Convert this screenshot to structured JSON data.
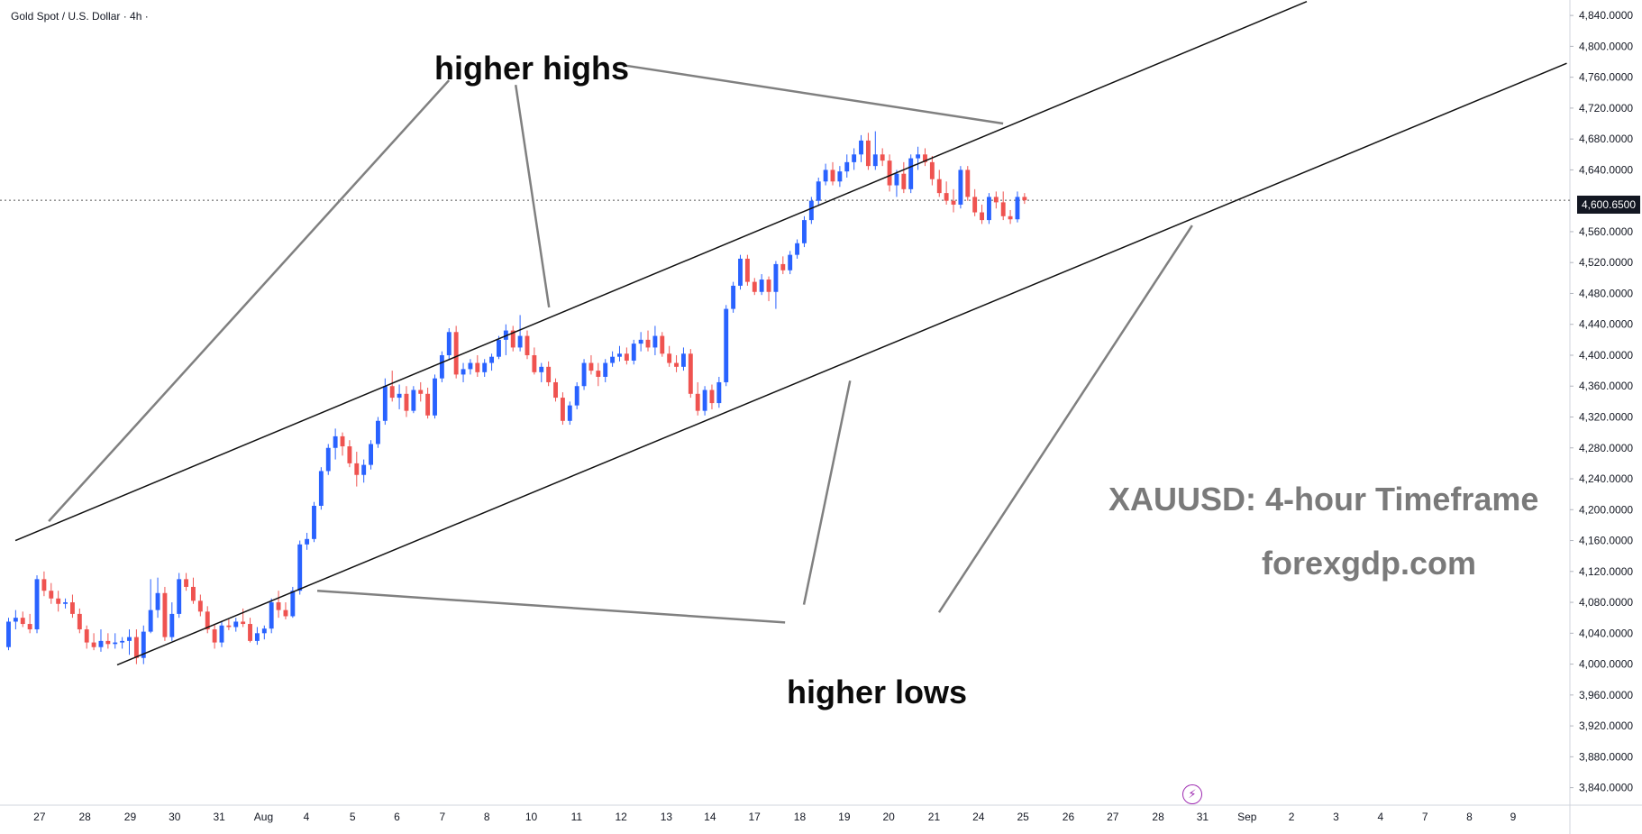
{
  "header": {
    "symbol": "Gold Spot / U.S. Dollar · 4h ·"
  },
  "current_price": "4,600.6500",
  "annotations": {
    "higher_highs": "higher highs",
    "higher_lows": "higher lows",
    "watermark_title": "XAUUSD: 4-hour Timeframe",
    "watermark_site": "forexgdp.com"
  },
  "colors": {
    "up": "#2962ff",
    "down": "#ef5350",
    "channel": "#111111",
    "pointer": "#808080",
    "watermark": "#7a7a7a"
  },
  "chart_data": {
    "type": "candlestick",
    "title": "",
    "price_range": [
      3825,
      4860
    ],
    "price_ticks": [
      "4,840.0000",
      "4,800.0000",
      "4,760.0000",
      "4,720.0000",
      "4,680.0000",
      "4,640.0000",
      "4,560.0000",
      "4,520.0000",
      "4,480.0000",
      "4,440.0000",
      "4,400.0000",
      "4,360.0000",
      "4,320.0000",
      "4,280.0000",
      "4,240.0000",
      "4,200.0000",
      "4,160.0000",
      "4,120.0000",
      "4,080.0000",
      "4,040.0000",
      "4,000.0000",
      "3,960.0000",
      "3,920.0000",
      "3,880.0000",
      "3,840.0000"
    ],
    "time_ticks": [
      "27",
      "28",
      "29",
      "30",
      "31",
      "Aug",
      "4",
      "5",
      "6",
      "7",
      "8",
      "10",
      "11",
      "12",
      "13",
      "14",
      "17",
      "18",
      "19",
      "20",
      "21",
      "24",
      "25",
      "26",
      "27",
      "28",
      "31",
      "Sep",
      "2",
      "3",
      "4",
      "7",
      "8",
      "9"
    ],
    "last_price": 4600.65,
    "candles_ohlc": [
      [
        4022,
        4060,
        4018,
        4055
      ],
      [
        4055,
        4070,
        4045,
        4060
      ],
      [
        4060,
        4068,
        4048,
        4052
      ],
      [
        4052,
        4065,
        4040,
        4045
      ],
      [
        4045,
        4115,
        4040,
        4110
      ],
      [
        4110,
        4120,
        4088,
        4095
      ],
      [
        4095,
        4105,
        4078,
        4085
      ],
      [
        4085,
        4095,
        4068,
        4078
      ],
      [
        4078,
        4085,
        4072,
        4080
      ],
      [
        4080,
        4090,
        4060,
        4065
      ],
      [
        4065,
        4072,
        4040,
        4045
      ],
      [
        4045,
        4050,
        4020,
        4028
      ],
      [
        4028,
        4040,
        4018,
        4022
      ],
      [
        4022,
        4045,
        4016,
        4030
      ],
      [
        4030,
        4040,
        4020,
        4026
      ],
      [
        4026,
        4040,
        4020,
        4028
      ],
      [
        4028,
        4035,
        4020,
        4030
      ],
      [
        4030,
        4045,
        4012,
        4035
      ],
      [
        4035,
        4045,
        4000,
        4008
      ],
      [
        4008,
        4050,
        4000,
        4042
      ],
      [
        4042,
        4110,
        4040,
        4070
      ],
      [
        4070,
        4112,
        4060,
        4092
      ],
      [
        4092,
        4100,
        4030,
        4035
      ],
      [
        4035,
        4080,
        4030,
        4065
      ],
      [
        4065,
        4118,
        4060,
        4110
      ],
      [
        4110,
        4118,
        4095,
        4100
      ],
      [
        4100,
        4112,
        4078,
        4082
      ],
      [
        4082,
        4090,
        4062,
        4068
      ],
      [
        4068,
        4075,
        4040,
        4045
      ],
      [
        4045,
        4052,
        4020,
        4028
      ],
      [
        4028,
        4055,
        4022,
        4050
      ],
      [
        4050,
        4058,
        4044,
        4048
      ],
      [
        4048,
        4060,
        4042,
        4055
      ],
      [
        4055,
        4072,
        4048,
        4052
      ],
      [
        4052,
        4060,
        4028,
        4030
      ],
      [
        4030,
        4048,
        4025,
        4040
      ],
      [
        4040,
        4050,
        4032,
        4046
      ],
      [
        4046,
        4085,
        4040,
        4080
      ],
      [
        4080,
        4095,
        4060,
        4070
      ],
      [
        4070,
        4080,
        4058,
        4062
      ],
      [
        4062,
        4100,
        4060,
        4095
      ],
      [
        4095,
        4160,
        4090,
        4155
      ],
      [
        4155,
        4170,
        4148,
        4162
      ],
      [
        4162,
        4210,
        4158,
        4205
      ],
      [
        4205,
        4255,
        4200,
        4250
      ],
      [
        4250,
        4285,
        4245,
        4280
      ],
      [
        4280,
        4305,
        4265,
        4295
      ],
      [
        4295,
        4300,
        4270,
        4282
      ],
      [
        4282,
        4290,
        4255,
        4260
      ],
      [
        4260,
        4275,
        4230,
        4245
      ],
      [
        4245,
        4265,
        4235,
        4258
      ],
      [
        4258,
        4290,
        4252,
        4285
      ],
      [
        4285,
        4320,
        4280,
        4315
      ],
      [
        4315,
        4370,
        4310,
        4360
      ],
      [
        4360,
        4380,
        4340,
        4345
      ],
      [
        4345,
        4362,
        4330,
        4350
      ],
      [
        4350,
        4360,
        4320,
        4328
      ],
      [
        4328,
        4360,
        4325,
        4355
      ],
      [
        4355,
        4365,
        4340,
        4350
      ],
      [
        4350,
        4358,
        4318,
        4322
      ],
      [
        4322,
        4375,
        4318,
        4370
      ],
      [
        4370,
        4405,
        4365,
        4400
      ],
      [
        4400,
        4435,
        4395,
        4430
      ],
      [
        4430,
        4438,
        4370,
        4375
      ],
      [
        4375,
        4390,
        4365,
        4382
      ],
      [
        4382,
        4395,
        4375,
        4390
      ],
      [
        4390,
        4400,
        4372,
        4378
      ],
      [
        4378,
        4395,
        4372,
        4390
      ],
      [
        4390,
        4402,
        4380,
        4398
      ],
      [
        4398,
        4425,
        4395,
        4420
      ],
      [
        4420,
        4440,
        4400,
        4432
      ],
      [
        4432,
        4438,
        4405,
        4410
      ],
      [
        4410,
        4452,
        4405,
        4425
      ],
      [
        4425,
        4432,
        4395,
        4400
      ],
      [
        4400,
        4410,
        4375,
        4378
      ],
      [
        4378,
        4390,
        4365,
        4385
      ],
      [
        4385,
        4392,
        4360,
        4365
      ],
      [
        4365,
        4370,
        4340,
        4345
      ],
      [
        4345,
        4352,
        4310,
        4315
      ],
      [
        4315,
        4340,
        4310,
        4335
      ],
      [
        4335,
        4365,
        4330,
        4360
      ],
      [
        4360,
        4395,
        4355,
        4390
      ],
      [
        4390,
        4400,
        4375,
        4380
      ],
      [
        4380,
        4390,
        4360,
        4372
      ],
      [
        4372,
        4395,
        4365,
        4390
      ],
      [
        4390,
        4405,
        4385,
        4398
      ],
      [
        4398,
        4412,
        4392,
        4402
      ],
      [
        4402,
        4410,
        4388,
        4393
      ],
      [
        4393,
        4420,
        4388,
        4415
      ],
      [
        4415,
        4430,
        4405,
        4420
      ],
      [
        4420,
        4432,
        4405,
        4410
      ],
      [
        4410,
        4438,
        4400,
        4425
      ],
      [
        4425,
        4430,
        4398,
        4402
      ],
      [
        4402,
        4412,
        4385,
        4390
      ],
      [
        4390,
        4400,
        4378,
        4385
      ],
      [
        4385,
        4410,
        4380,
        4402
      ],
      [
        4402,
        4408,
        4345,
        4350
      ],
      [
        4350,
        4365,
        4322,
        4328
      ],
      [
        4328,
        4360,
        4322,
        4355
      ],
      [
        4355,
        4362,
        4330,
        4338
      ],
      [
        4338,
        4372,
        4332,
        4365
      ],
      [
        4365,
        4465,
        4360,
        4460
      ],
      [
        4460,
        4495,
        4455,
        4490
      ],
      [
        4490,
        4530,
        4485,
        4525
      ],
      [
        4525,
        4530,
        4490,
        4495
      ],
      [
        4495,
        4500,
        4478,
        4482
      ],
      [
        4482,
        4505,
        4478,
        4498
      ],
      [
        4498,
        4502,
        4470,
        4482
      ],
      [
        4482,
        4522,
        4460,
        4518
      ],
      [
        4518,
        4528,
        4505,
        4510
      ],
      [
        4510,
        4535,
        4505,
        4530
      ],
      [
        4530,
        4550,
        4525,
        4545
      ],
      [
        4545,
        4580,
        4540,
        4575
      ],
      [
        4575,
        4605,
        4570,
        4600
      ],
      [
        4600,
        4630,
        4595,
        4625
      ],
      [
        4625,
        4648,
        4620,
        4640
      ],
      [
        4640,
        4650,
        4620,
        4625
      ],
      [
        4625,
        4645,
        4618,
        4638
      ],
      [
        4638,
        4660,
        4630,
        4650
      ],
      [
        4650,
        4668,
        4640,
        4660
      ],
      [
        4660,
        4685,
        4650,
        4678
      ],
      [
        4678,
        4688,
        4640,
        4645
      ],
      [
        4645,
        4690,
        4640,
        4660
      ],
      [
        4660,
        4668,
        4645,
        4652
      ],
      [
        4652,
        4660,
        4612,
        4620
      ],
      [
        4620,
        4640,
        4605,
        4635
      ],
      [
        4635,
        4650,
        4610,
        4615
      ],
      [
        4615,
        4660,
        4610,
        4655
      ],
      [
        4655,
        4670,
        4640,
        4660
      ],
      [
        4660,
        4668,
        4645,
        4650
      ],
      [
        4650,
        4658,
        4620,
        4628
      ],
      [
        4628,
        4640,
        4605,
        4610
      ],
      [
        4610,
        4625,
        4595,
        4600
      ],
      [
        4600,
        4615,
        4585,
        4595
      ],
      [
        4595,
        4645,
        4590,
        4640
      ],
      [
        4640,
        4645,
        4600,
        4605
      ],
      [
        4605,
        4615,
        4580,
        4585
      ],
      [
        4585,
        4595,
        4570,
        4575
      ],
      [
        4575,
        4610,
        4570,
        4605
      ],
      [
        4605,
        4612,
        4590,
        4598
      ],
      [
        4598,
        4612,
        4575,
        4580
      ],
      [
        4580,
        4588,
        4570,
        4576
      ],
      [
        4576,
        4612,
        4572,
        4605
      ],
      [
        4605,
        4610,
        4596,
        4600.65
      ]
    ]
  }
}
